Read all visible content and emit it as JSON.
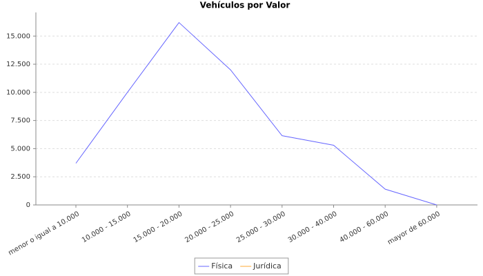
{
  "chart_data": {
    "type": "line",
    "title": "Vehículos por Valor",
    "categories": [
      "menor o igual a 10.000",
      "10.000 - 15.000",
      "15.000 - 20.000",
      "20.000 - 25.000",
      "25.000 - 30.000",
      "30.000 - 40.000",
      "40.000 - 60.000",
      "mayor de 60.000"
    ],
    "series": [
      {
        "name": "Física",
        "color": "#6666ff",
        "values": [
          3700,
          10000,
          16200,
          12000,
          6150,
          5300,
          1400,
          0
        ]
      },
      {
        "name": "Jurídica",
        "color": "#ffaa33",
        "values": [
          null,
          null,
          null,
          null,
          null,
          null,
          null,
          null
        ]
      }
    ],
    "ylim": [
      0,
      17100
    ],
    "yticks": [
      0,
      {
        "value": 2500,
        "label": "2.500"
      },
      {
        "value": 5000,
        "label": "5.000"
      },
      {
        "value": 7500,
        "label": "7.500"
      },
      {
        "value": 10000,
        "label": "10.000"
      },
      {
        "value": 12500,
        "label": "12.500"
      },
      {
        "value": 15000,
        "label": "15.000"
      }
    ],
    "grid": true,
    "legend": "bottom"
  }
}
